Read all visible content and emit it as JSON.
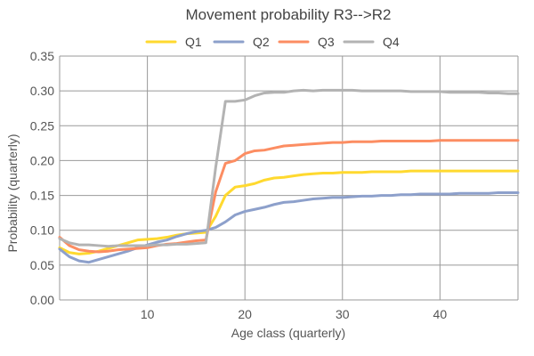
{
  "chart_data": {
    "type": "line",
    "title": "Movement probability R3-->R2",
    "xlabel": "Age class (quarterly)",
    "ylabel": "Probability (quarterly)",
    "xlim": [
      1,
      48
    ],
    "ylim": [
      0,
      0.35
    ],
    "x_ticks": [
      10,
      20,
      30,
      40
    ],
    "y_ticks": [
      "0.00",
      "0.05",
      "0.10",
      "0.15",
      "0.20",
      "0.25",
      "0.30",
      "0.35"
    ],
    "grid": true,
    "legend_position": "top-center",
    "x": [
      1,
      2,
      3,
      4,
      5,
      6,
      7,
      8,
      9,
      10,
      11,
      12,
      13,
      14,
      15,
      16,
      17,
      18,
      19,
      20,
      21,
      22,
      23,
      24,
      25,
      26,
      27,
      28,
      29,
      30,
      31,
      32,
      33,
      34,
      35,
      36,
      37,
      38,
      39,
      40,
      41,
      42,
      43,
      44,
      45,
      46,
      47,
      48
    ],
    "series": [
      {
        "name": "Q1",
        "color": "#FFD92F",
        "values": [
          0.075,
          0.068,
          0.066,
          0.067,
          0.07,
          0.074,
          0.078,
          0.082,
          0.086,
          0.087,
          0.088,
          0.09,
          0.093,
          0.095,
          0.096,
          0.097,
          0.12,
          0.15,
          0.162,
          0.164,
          0.167,
          0.172,
          0.175,
          0.176,
          0.178,
          0.18,
          0.181,
          0.182,
          0.182,
          0.183,
          0.183,
          0.183,
          0.184,
          0.184,
          0.184,
          0.184,
          0.185,
          0.185,
          0.185,
          0.185,
          0.185,
          0.185,
          0.185,
          0.185,
          0.185,
          0.185,
          0.185,
          0.185
        ]
      },
      {
        "name": "Q2",
        "color": "#8DA0CB",
        "values": [
          0.073,
          0.062,
          0.056,
          0.054,
          0.058,
          0.062,
          0.066,
          0.07,
          0.075,
          0.079,
          0.083,
          0.086,
          0.091,
          0.095,
          0.098,
          0.1,
          0.104,
          0.112,
          0.122,
          0.127,
          0.13,
          0.133,
          0.137,
          0.14,
          0.141,
          0.143,
          0.145,
          0.146,
          0.147,
          0.147,
          0.148,
          0.149,
          0.149,
          0.15,
          0.15,
          0.151,
          0.151,
          0.152,
          0.152,
          0.152,
          0.152,
          0.153,
          0.153,
          0.153,
          0.153,
          0.154,
          0.154,
          0.154
        ]
      },
      {
        "name": "Q3",
        "color": "#FC8D62",
        "values": [
          0.09,
          0.078,
          0.072,
          0.07,
          0.069,
          0.07,
          0.072,
          0.073,
          0.074,
          0.075,
          0.078,
          0.08,
          0.081,
          0.083,
          0.085,
          0.086,
          0.155,
          0.196,
          0.2,
          0.21,
          0.214,
          0.215,
          0.218,
          0.221,
          0.222,
          0.223,
          0.224,
          0.225,
          0.226,
          0.226,
          0.227,
          0.227,
          0.227,
          0.228,
          0.228,
          0.228,
          0.228,
          0.228,
          0.228,
          0.229,
          0.229,
          0.229,
          0.229,
          0.229,
          0.229,
          0.229,
          0.229,
          0.229
        ]
      },
      {
        "name": "Q4",
        "color": "#B3B3B3",
        "values": [
          0.088,
          0.082,
          0.079,
          0.079,
          0.078,
          0.077,
          0.078,
          0.078,
          0.078,
          0.078,
          0.079,
          0.079,
          0.08,
          0.08,
          0.081,
          0.082,
          0.19,
          0.285,
          0.285,
          0.287,
          0.293,
          0.297,
          0.298,
          0.298,
          0.3,
          0.301,
          0.3,
          0.301,
          0.301,
          0.301,
          0.301,
          0.3,
          0.3,
          0.3,
          0.3,
          0.3,
          0.299,
          0.299,
          0.299,
          0.299,
          0.298,
          0.298,
          0.298,
          0.298,
          0.297,
          0.297,
          0.296,
          0.296
        ]
      }
    ]
  }
}
